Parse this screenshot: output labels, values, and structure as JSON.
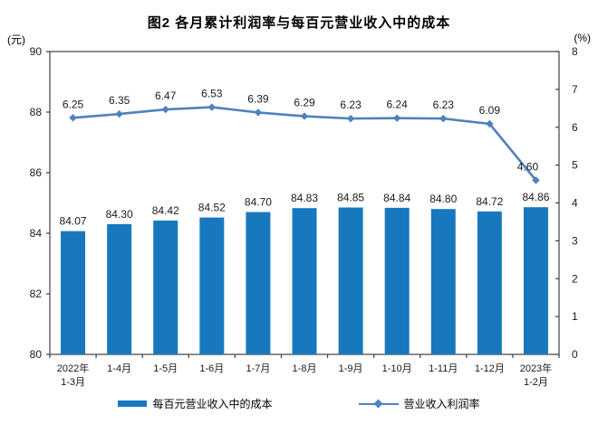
{
  "title": "图2 各月累计利润率与每百元营业收入中的成本",
  "left_axis_unit": "(元)",
  "right_axis_unit": "(%)",
  "legend": {
    "bar_label": "每百元营业收入中的成本",
    "line_label": "营业收入利润率"
  },
  "colors": {
    "bar": "#1878BE",
    "line": "#4F81BD",
    "axis": "#404040",
    "text": "#1a1a1a"
  },
  "chart_data": {
    "type": "bar",
    "subtype": "bar-line-combo",
    "title": "图2 各月累计利润率与每百元营业收入中的成本",
    "categories": [
      [
        "2022年",
        "1-3月"
      ],
      [
        "1-4月"
      ],
      [
        "1-5月"
      ],
      [
        "1-6月"
      ],
      [
        "1-7月"
      ],
      [
        "1-8月"
      ],
      [
        "1-9月"
      ],
      [
        "1-10月"
      ],
      [
        "1-11月"
      ],
      [
        "1-12月"
      ],
      [
        "2023年",
        "1-2月"
      ]
    ],
    "series": [
      {
        "name": "每百元营业收入中的成本",
        "type": "bar",
        "axis": "left",
        "color": "#1878BE",
        "values": [
          84.07,
          84.3,
          84.42,
          84.52,
          84.7,
          84.83,
          84.85,
          84.84,
          84.8,
          84.72,
          84.86
        ]
      },
      {
        "name": "营业收入利润率",
        "type": "line",
        "axis": "right",
        "color": "#4F81BD",
        "values": [
          6.25,
          6.35,
          6.47,
          6.53,
          6.39,
          6.29,
          6.23,
          6.24,
          6.23,
          6.09,
          4.6
        ]
      }
    ],
    "left_axis": {
      "label": "(元)",
      "min": 80,
      "max": 90,
      "ticks": [
        80,
        82,
        84,
        86,
        88,
        90
      ]
    },
    "right_axis": {
      "label": "(%)",
      "min": 0,
      "max": 8,
      "ticks": [
        0,
        1,
        2,
        3,
        4,
        5,
        6,
        7,
        8
      ]
    },
    "grid": false,
    "legend_position": "bottom",
    "data_labels": true
  }
}
